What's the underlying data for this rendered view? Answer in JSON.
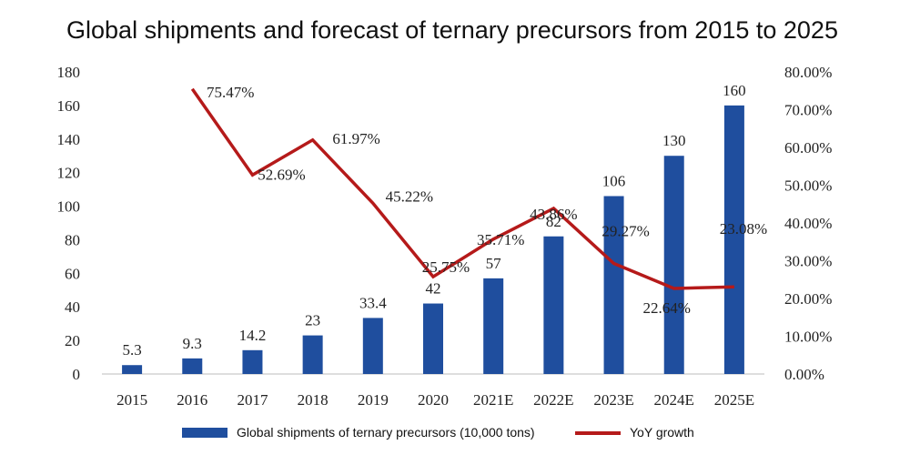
{
  "chart_data": {
    "type": "bar",
    "title": "Global shipments and forecast of ternary precursors from 2015 to 2025",
    "categories": [
      "2015",
      "2016",
      "2017",
      "2018",
      "2019",
      "2020",
      "2021E",
      "2022E",
      "2023E",
      "2024E",
      "2025E"
    ],
    "series": [
      {
        "name": "Global shipments of ternary precursors (10,000 tons)",
        "type": "bar",
        "axis": "left",
        "color": "#1f4e9e",
        "values": [
          5.3,
          9.3,
          14.2,
          23,
          33.4,
          42,
          57,
          82,
          106,
          130,
          160
        ],
        "labels": [
          "5.3",
          "9.3",
          "14.2",
          "23",
          "33.4",
          "42",
          "57",
          "82",
          "106",
          "130",
          "160"
        ]
      },
      {
        "name": "YoY growth",
        "type": "line",
        "axis": "right",
        "color": "#b51a1a",
        "values": [
          null,
          75.47,
          52.69,
          61.97,
          45.22,
          25.75,
          35.71,
          43.86,
          29.27,
          22.64,
          23.08
        ],
        "labels": [
          "",
          "75.47%",
          "52.69%",
          "61.97%",
          "45.22%",
          "25.75%",
          "35.71%",
          "43.86%",
          "29.27%",
          "22.64%",
          "23.08%"
        ]
      }
    ],
    "y_left": {
      "min": 0,
      "max": 180,
      "ticks": [
        "0",
        "20",
        "40",
        "60",
        "80",
        "100",
        "120",
        "140",
        "160",
        "180"
      ]
    },
    "y_right": {
      "min": 0,
      "max": 80,
      "ticks": [
        "0.00%",
        "10.00%",
        "20.00%",
        "30.00%",
        "40.00%",
        "50.00%",
        "60.00%",
        "70.00%",
        "80.00%"
      ]
    },
    "grid": false,
    "legend_position": "bottom"
  }
}
